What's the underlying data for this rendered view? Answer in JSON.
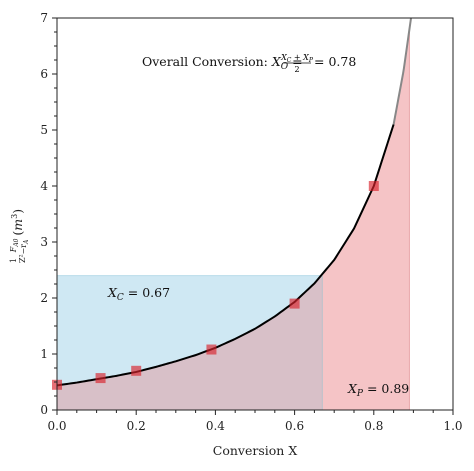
{
  "chart_data": {
    "type": "line",
    "xlabel": "Conversion X",
    "ylabel": "(1/Z²)·(F_A0/−r_A) (m³)",
    "xlim": [
      0.0,
      1.0
    ],
    "ylim": [
      0,
      7
    ],
    "xticks": [
      "0.0",
      "0.2",
      "0.4",
      "0.6",
      "0.8",
      "1.0"
    ],
    "yticks": [
      "0",
      "1",
      "2",
      "3",
      "4",
      "5",
      "6",
      "7"
    ],
    "grid": false,
    "curve": {
      "x": [
        0.0,
        0.05,
        0.1,
        0.15,
        0.2,
        0.25,
        0.3,
        0.35,
        0.4,
        0.45,
        0.5,
        0.55,
        0.6,
        0.65,
        0.7,
        0.75,
        0.8,
        0.85,
        0.875,
        0.9
      ],
      "y": [
        0.44,
        0.49,
        0.55,
        0.61,
        0.68,
        0.77,
        0.87,
        0.98,
        1.11,
        1.27,
        1.45,
        1.67,
        1.93,
        2.26,
        2.68,
        3.24,
        4.0,
        5.1,
        6.05,
        7.3
      ]
    },
    "data_points": {
      "x": [
        0.0,
        0.11,
        0.2,
        0.39,
        0.6,
        0.8
      ],
      "y": [
        0.45,
        0.57,
        0.7,
        1.08,
        1.9,
        4.0
      ]
    },
    "regions": {
      "cstr": {
        "x_from": 0.0,
        "x_to": 0.67,
        "height": 2.4,
        "color": "#cfe8f3"
      },
      "pfr": {
        "x_from": 0.67,
        "x_to": 0.89,
        "color": "#f5c4c6"
      }
    },
    "annotations": {
      "overall_prefix": "Overall Conversion: ",
      "overall_value": " = 0.78",
      "xc_label": "= 0.67",
      "xp_label": "= 0.89"
    },
    "colors": {
      "curve": "#000000",
      "curve_tail": "#888888",
      "point": "#d8222b",
      "blue_fill": "#cfe8f3",
      "red_fill": "#f5c4c6",
      "overlap": "#d8c0c8"
    }
  }
}
